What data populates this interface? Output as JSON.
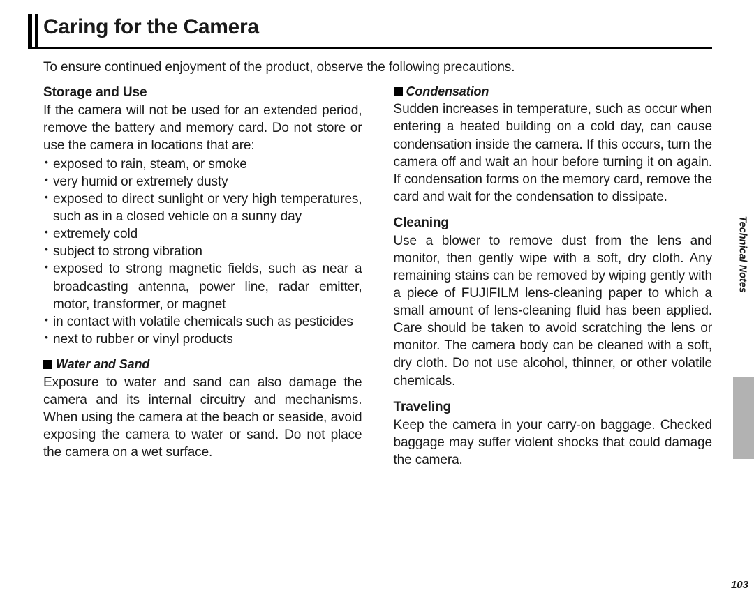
{
  "title": "Caring for the Camera",
  "intro": "To ensure continued enjoyment of the product, observe the following precautions.",
  "left": {
    "storage_heading": "Storage and Use",
    "storage_intro": "If the camera will not be used for an extended period, remove the battery and memory card.  Do not store or use the camera in locations that are:",
    "storage_items": {
      "i0": "exposed to rain, steam, or smoke",
      "i1": "very humid or extremely dusty",
      "i2": "exposed to direct sunlight or very high temperatures, such as in a closed vehicle on a sunny day",
      "i3": "extremely cold",
      "i4": "subject to strong vibration",
      "i5": "exposed to strong magnetic fields, such as near a broadcasting antenna, power line, radar emitter, motor, transformer, or magnet",
      "i6": "in contact with volatile chemicals such as pesticides",
      "i7": "next to rubber or vinyl products"
    },
    "water_heading": "Water and Sand",
    "water_body": "Exposure to water and sand can also damage the camera and its internal circuitry and mechanisms.  When using the camera at the beach or seaside, avoid exposing the camera to water or sand.  Do not place the camera on a wet surface."
  },
  "right": {
    "cond_heading": "Condensation",
    "cond_body": "Sudden increases in temperature, such as occur when entering a heated building on a cold day, can cause condensation inside the camera.  If this occurs, turn the camera off and wait an hour before turning it on again.  If condensation forms on the memory card, remove the card and wait for the condensation to dissipate.",
    "clean_heading": "Cleaning",
    "clean_body": "Use a blower to remove dust from the lens and monitor, then gently wipe with a soft, dry cloth.  Any remaining stains can be removed by wiping gently with a piece of FUJIFILM lens-cleaning paper to which a small amount of lens-cleaning fluid has been applied.  Care should be taken to avoid scratching the lens or monitor.  The camera body can be cleaned with a soft, dry cloth.  Do not use alcohol, thinner, or other volatile chemicals.",
    "travel_heading": "Traveling",
    "travel_body": "Keep the camera in your carry-on baggage.  Checked baggage may suffer violent shocks that could damage the camera."
  },
  "side_label": "Technical Notes",
  "page_number": "103",
  "colors": {
    "text": "#1a1a1a",
    "background": "#ffffff",
    "tab": "#b2b2b2",
    "rule": "#000000"
  }
}
